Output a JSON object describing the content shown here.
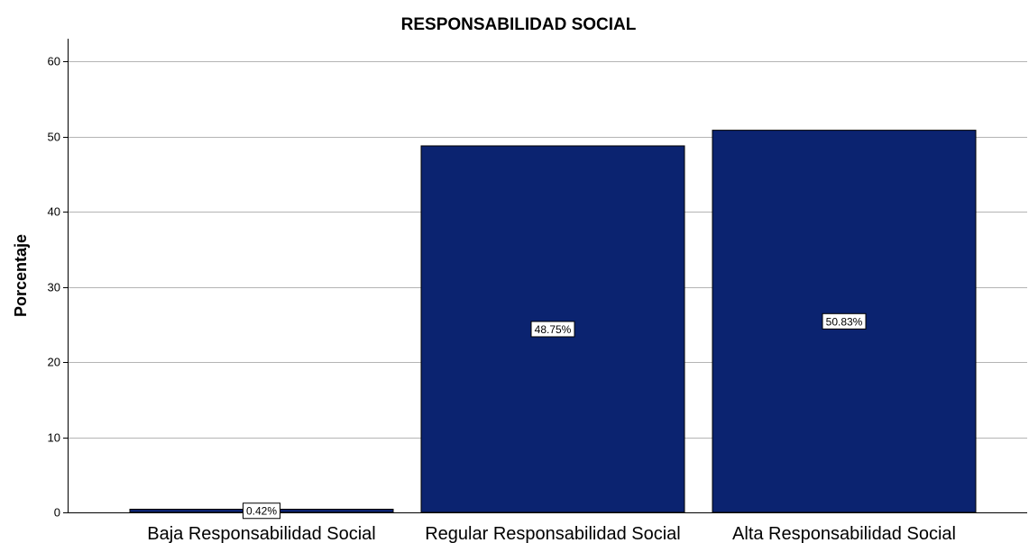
{
  "chart_data": {
    "type": "bar",
    "title": "RESPONSABILIDAD SOCIAL",
    "xlabel": "",
    "ylabel": "Porcentaje",
    "categories": [
      "Baja Responsabilidad Social",
      "Regular Responsabilidad Social",
      "Alta Responsabilidad Social"
    ],
    "values": [
      0.42,
      48.75,
      50.83
    ],
    "data_labels": [
      "0.42%",
      "48.75%",
      "50.83%"
    ],
    "ylim": [
      0,
      63
    ],
    "yticks": [
      0,
      10,
      20,
      30,
      40,
      50,
      60
    ],
    "grid": true,
    "legend": "none",
    "colors": {
      "bar": "#0b2370",
      "bar_edge": "#000000",
      "grid": "#b4b4b4",
      "axis": "#000000"
    }
  }
}
